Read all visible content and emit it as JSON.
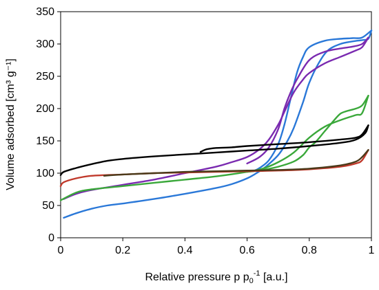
{
  "chart_data": {
    "type": "line",
    "title": "",
    "xlabel": "Relative pressure p p",
    "xlabel_sub": "0",
    "xlabel_sup": "-1",
    "xlabel_unit": " [a.u.]",
    "ylabel": "Volume adsorbed [cm³ g⁻¹]",
    "xlim": [
      0,
      1
    ],
    "ylim": [
      0,
      350
    ],
    "x_ticks": [
      0,
      0.2,
      0.4,
      0.6,
      0.8,
      1
    ],
    "x_tick_labels": [
      "0",
      "0.2",
      "0.4",
      "0.6",
      "0.8",
      "1"
    ],
    "y_ticks": [
      0,
      50,
      100,
      150,
      200,
      250,
      300,
      350
    ],
    "y_tick_labels": [
      "0",
      "50",
      "100",
      "150",
      "200",
      "250",
      "300",
      "350"
    ],
    "grid": false,
    "legend": "none",
    "series": [
      {
        "color": "#2a78d8",
        "branch": "adsorption",
        "x": [
          0.01,
          0.05,
          0.1,
          0.15,
          0.2,
          0.3,
          0.4,
          0.5,
          0.55,
          0.6,
          0.63,
          0.66,
          0.7,
          0.73,
          0.75,
          0.78,
          0.8,
          0.83,
          0.86,
          0.9,
          0.94,
          0.97,
          0.99,
          1.0
        ],
        "y": [
          31,
          38,
          45,
          50,
          53,
          60,
          68,
          77,
          83,
          92,
          100,
          110,
          128,
          150,
          170,
          210,
          240,
          270,
          290,
          300,
          304,
          306,
          308,
          321
        ]
      },
      {
        "color": "#2a78d8",
        "branch": "desorption",
        "x": [
          1.0,
          0.97,
          0.94,
          0.9,
          0.85,
          0.8,
          0.78,
          0.76,
          0.74,
          0.72,
          0.7,
          0.67,
          0.64,
          0.62
        ],
        "y": [
          321,
          310,
          309,
          308,
          305,
          295,
          280,
          255,
          215,
          175,
          145,
          120,
          108,
          103
        ]
      },
      {
        "color": "#7a2ab0",
        "branch": "adsorption",
        "x": [
          0.01,
          0.05,
          0.1,
          0.2,
          0.3,
          0.4,
          0.5,
          0.55,
          0.6,
          0.64,
          0.67,
          0.7,
          0.72,
          0.75,
          0.78,
          0.8,
          0.85,
          0.9,
          0.95,
          0.97,
          0.99
        ],
        "y": [
          60,
          68,
          74,
          82,
          90,
          100,
          110,
          117,
          125,
          137,
          152,
          175,
          195,
          225,
          245,
          255,
          270,
          280,
          290,
          295,
          310
        ]
      },
      {
        "color": "#7a2ab0",
        "branch": "desorption",
        "x": [
          0.99,
          0.97,
          0.94,
          0.9,
          0.85,
          0.8,
          0.76,
          0.74,
          0.72,
          0.7,
          0.67,
          0.64,
          0.6
        ],
        "y": [
          310,
          300,
          296,
          293,
          288,
          275,
          245,
          225,
          200,
          168,
          140,
          125,
          115
        ]
      },
      {
        "color": "#3aa83a",
        "branch": "adsorption",
        "x": [
          0.0,
          0.05,
          0.1,
          0.2,
          0.3,
          0.4,
          0.5,
          0.6,
          0.65,
          0.7,
          0.75,
          0.8,
          0.85,
          0.9,
          0.95,
          0.97,
          0.99
        ],
        "y": [
          58,
          70,
          75,
          80,
          85,
          90,
          95,
          102,
          107,
          117,
          132,
          155,
          172,
          182,
          190,
          193,
          220
        ]
      },
      {
        "color": "#3aa83a",
        "branch": "desorption",
        "x": [
          0.99,
          0.97,
          0.95,
          0.92,
          0.9,
          0.88,
          0.85,
          0.82,
          0.8,
          0.78,
          0.75,
          0.7,
          0.65,
          0.6
        ],
        "y": [
          220,
          205,
          200,
          196,
          192,
          182,
          165,
          148,
          140,
          128,
          118,
          110,
          105,
          102
        ]
      },
      {
        "color": "#000000",
        "branch": "adsorption",
        "x": [
          0.0,
          0.01,
          0.05,
          0.1,
          0.15,
          0.2,
          0.3,
          0.4,
          0.5,
          0.6,
          0.7,
          0.8,
          0.9,
          0.95,
          0.98,
          0.99
        ],
        "y": [
          97,
          102,
          108,
          114,
          119,
          122,
          126,
          129,
          132,
          135,
          138,
          142,
          147,
          152,
          162,
          174
        ]
      },
      {
        "color": "#000000",
        "branch": "desorption",
        "x": [
          0.99,
          0.97,
          0.95,
          0.9,
          0.8,
          0.7,
          0.6,
          0.55,
          0.5,
          0.47,
          0.45
        ],
        "y": [
          174,
          160,
          155,
          152,
          148,
          145,
          142,
          140,
          139,
          137,
          133
        ]
      },
      {
        "color": "#c0392b",
        "branch": "adsorption",
        "x": [
          0.0,
          0.01,
          0.05,
          0.1,
          0.2,
          0.3,
          0.4,
          0.5,
          0.6,
          0.7,
          0.8,
          0.9,
          0.95,
          0.97,
          0.99
        ],
        "y": [
          80,
          86,
          92,
          96,
          98,
          100,
          101,
          102,
          103,
          104,
          106,
          110,
          115,
          120,
          136
        ]
      },
      {
        "color": "#4a3a1a",
        "branch": "desorption",
        "x": [
          0.99,
          0.97,
          0.95,
          0.9,
          0.8,
          0.7,
          0.6,
          0.5,
          0.4,
          0.3,
          0.2,
          0.14
        ],
        "y": [
          136,
          125,
          118,
          112,
          107,
          105,
          104,
          103,
          102,
          100,
          98,
          96
        ]
      }
    ]
  }
}
